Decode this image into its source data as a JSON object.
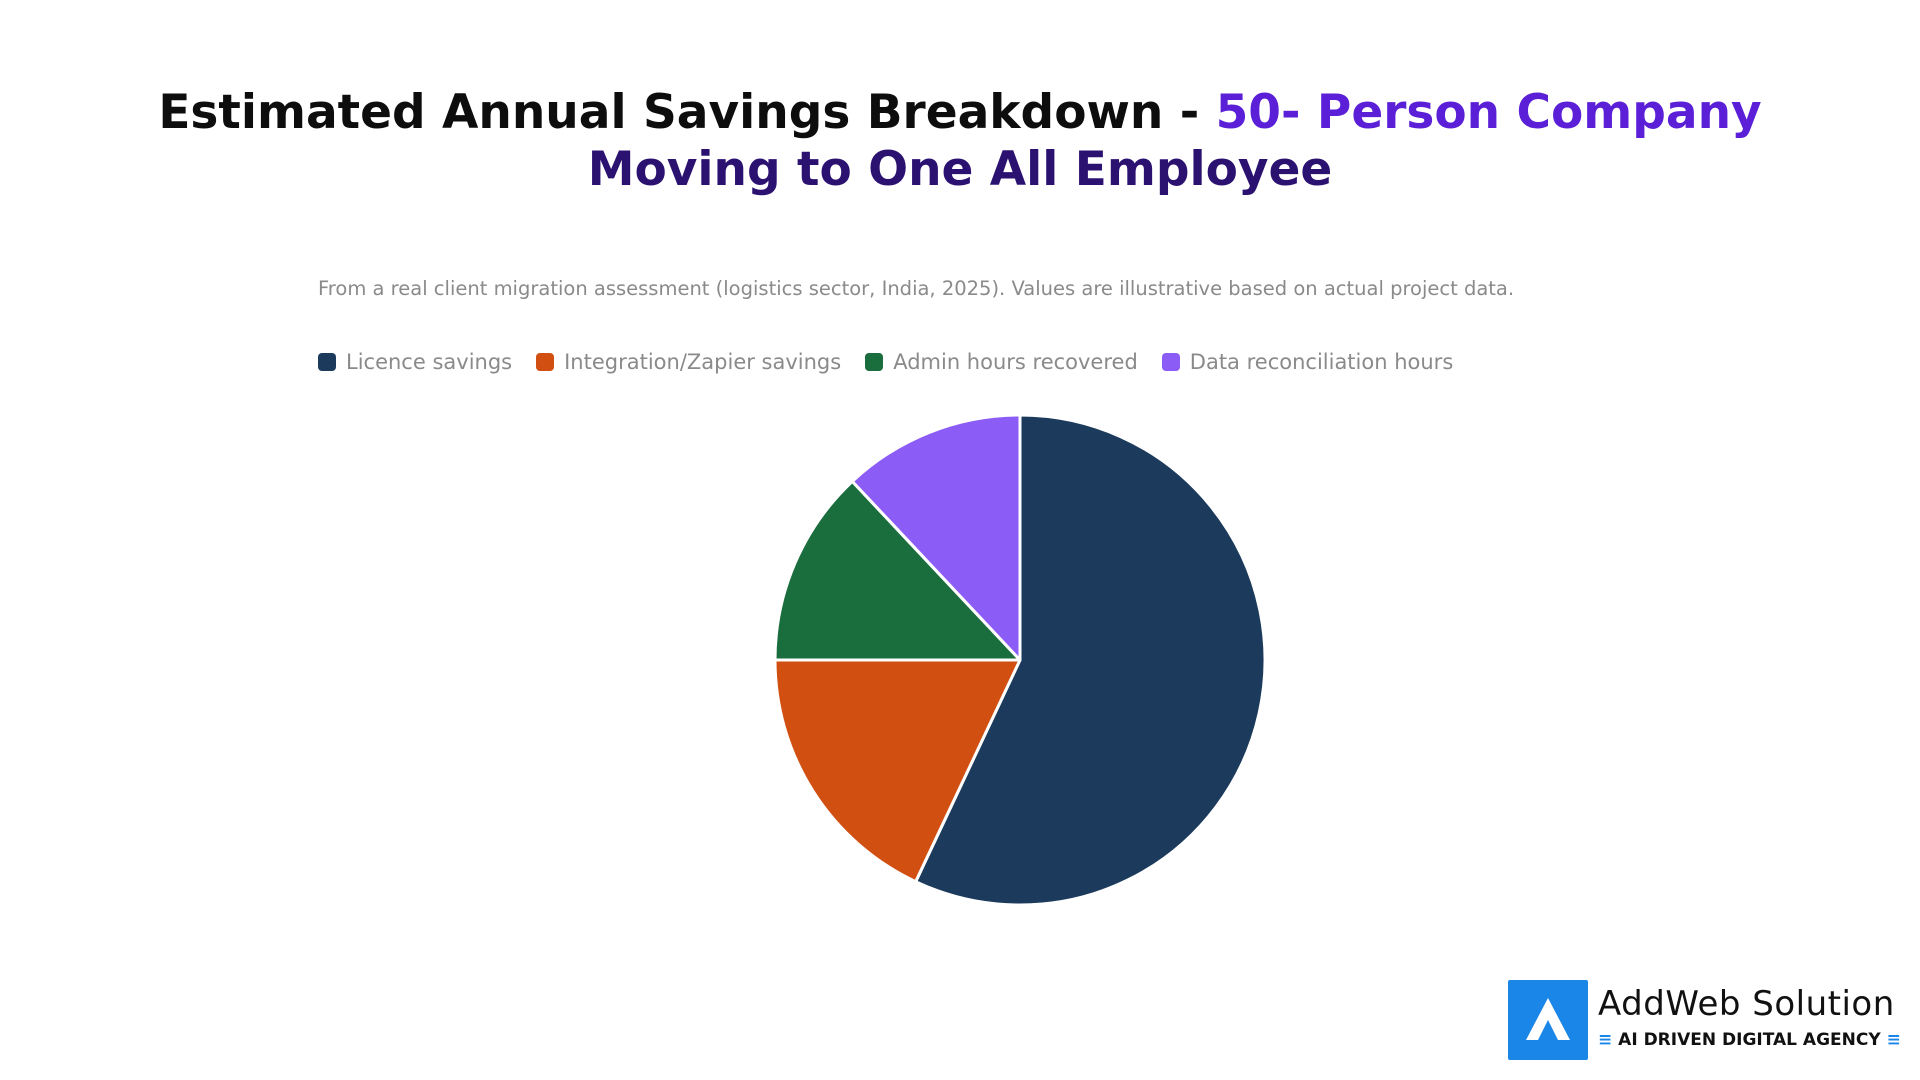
{
  "title": {
    "part1": "Estimated Annual Savings Breakdown - ",
    "part2": "50- Person Company",
    "part3": "Moving to One All Employee"
  },
  "subtitle": "From a real client migration assessment (logistics sector, India, 2025). Values are illustrative based on actual project data.",
  "colors": {
    "licence": "#1b3a5c",
    "integration": "#d24f12",
    "admin": "#1a6e3e",
    "data": "#8b5cf6",
    "title_dark": "#0d0d0d",
    "title_accent": "#5a1fd6",
    "brand_blue": "#1a86e8"
  },
  "chart_data": {
    "type": "pie",
    "title": "Estimated Annual Savings Breakdown - 50- Person Company Moving to One All Employee",
    "legend_position": "top-left",
    "slices": [
      {
        "label": "Licence savings",
        "value": 57,
        "color": "#1b3a5c"
      },
      {
        "label": "Integration/Zapier savings",
        "value": 18,
        "color": "#d24f12"
      },
      {
        "label": "Admin hours recovered",
        "value": 13,
        "color": "#1a6e3e"
      },
      {
        "label": "Data reconciliation hours",
        "value": 12,
        "color": "#8b5cf6"
      }
    ]
  },
  "logo": {
    "name": "AddWeb Solution",
    "tagline": "AI DRIVEN DIGITAL AGENCY",
    "icon": "addweb-logo-icon"
  }
}
